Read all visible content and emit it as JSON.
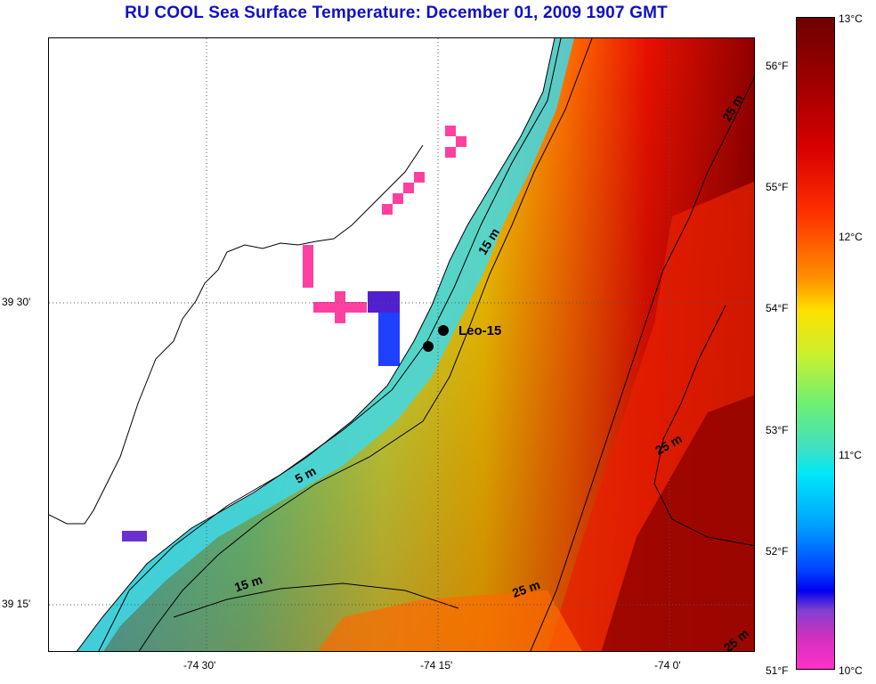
{
  "title": "RU COOL  Sea Surface Temperature:  December 01, 2009 1907 GMT",
  "station": {
    "label": "Leo-15"
  },
  "depth_labels": [
    {
      "text": "25 m"
    },
    {
      "text": "15 m"
    },
    {
      "text": "5 m"
    },
    {
      "text": "25 m"
    },
    {
      "text": "15 m"
    },
    {
      "text": "25 m"
    },
    {
      "text": "25 m"
    }
  ],
  "axes": {
    "lon_labels": [
      "-74 30'",
      "-74 15'",
      "-74 0'"
    ],
    "lat_labels": [
      "39 30'",
      "39 15'"
    ]
  },
  "colorbar": {
    "celsius_labels": [
      "13°C",
      "12°C",
      "11°C",
      "10°C"
    ],
    "fahrenheit_labels": [
      "56°F",
      "55°F",
      "54°F",
      "53°F",
      "52°F",
      "51°F"
    ]
  },
  "colors": {
    "title": "#1010c8",
    "land": "#ffffff",
    "coastline": "#000000"
  }
}
